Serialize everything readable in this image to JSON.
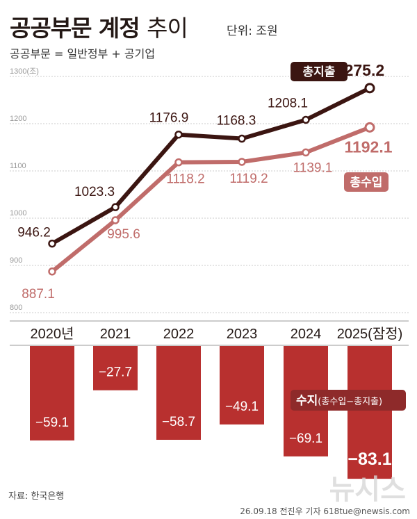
{
  "header": {
    "title_bold": "공공부문 계정",
    "title_light": "추이",
    "unit": "단위: 조원",
    "subtitle": "공공부문 = 일반정부 + 공기업"
  },
  "footer": {
    "source": "자료: 한국은행",
    "credit": "26.09.18 전진우 기자 618tue@newsis.com",
    "watermark": "뉴시스"
  },
  "colors": {
    "expenditure": "#3b1511",
    "revenue": "#c06c6a",
    "balance_bar": "#b8302f",
    "balance_label_bg": "#8e2a2a",
    "grid": "#bbbbbb"
  },
  "chart_data": [
    {
      "type": "line",
      "categories": [
        "2020년",
        "2021",
        "2022",
        "2023",
        "2024",
        "2025(잠정)"
      ],
      "series": [
        {
          "name": "총지출",
          "values": [
            946.2,
            1023.3,
            1176.9,
            1168.3,
            1208.1,
            1275.2
          ]
        },
        {
          "name": "총수입",
          "values": [
            887.1,
            995.6,
            1118.2,
            1119.2,
            1139.1,
            1192.1
          ]
        }
      ],
      "yticks": [
        "1300(조)",
        "1200",
        "1100",
        "1000",
        "900",
        "800"
      ],
      "ylim": [
        800,
        1300
      ],
      "grid": true,
      "legend": "inline labels at line ends"
    },
    {
      "type": "bar",
      "categories": [
        "2020년",
        "2021",
        "2022",
        "2023",
        "2024",
        "2025(잠정)"
      ],
      "series": [
        {
          "name": "수지",
          "name_sub": "(총수입−총지출)",
          "values": [
            -59.1,
            -27.7,
            -58.7,
            -49.1,
            -69.1,
            -83.1
          ]
        }
      ]
    }
  ]
}
